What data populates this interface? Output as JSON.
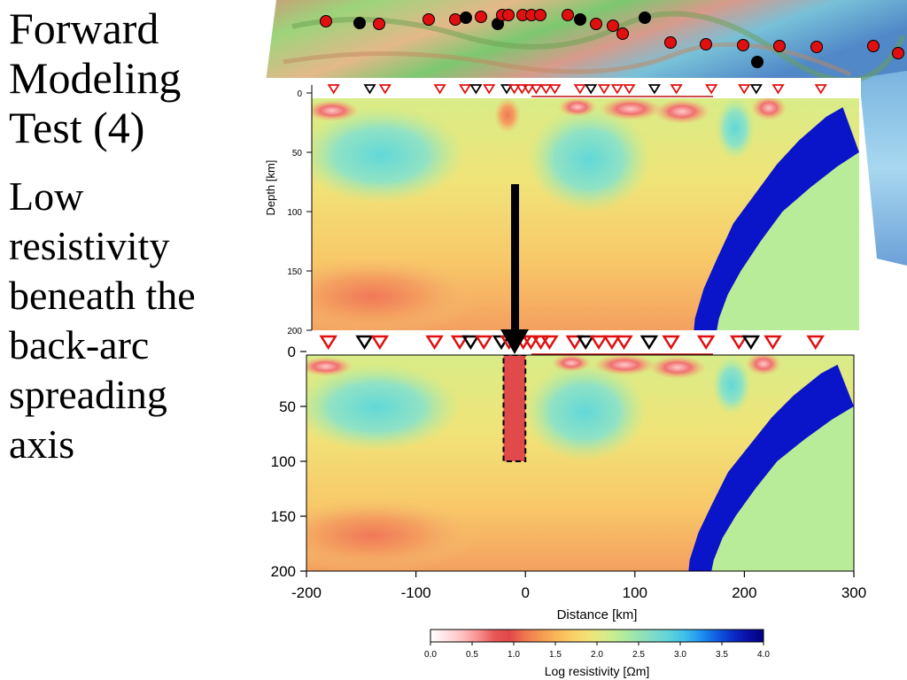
{
  "slide": {
    "title_lines": [
      "Forward",
      "Modeling",
      "Test (4)"
    ],
    "subtitle_lines": [
      "Low",
      "resistivity",
      "beneath the",
      "back-arc",
      "spreading",
      "axis"
    ]
  },
  "colors": {
    "slab": "#0a14c8",
    "background_mantle": "#b8ec98",
    "conductor": "#e04a4a",
    "station_red": "#e01010",
    "station_black": "#000000"
  },
  "chart_data": [
    {
      "type": "heatmap",
      "panel": "top-original-model",
      "x_range": [
        -200,
        300
      ],
      "ylim": [
        0,
        200
      ],
      "y_inverted": true,
      "ylabel": "Depth [km]",
      "yticks": [
        0,
        50,
        100,
        150,
        200
      ],
      "stations": [
        {
          "x": -180,
          "c": "red"
        },
        {
          "x": -147,
          "c": "black"
        },
        {
          "x": -133,
          "c": "red"
        },
        {
          "x": -83,
          "c": "red"
        },
        {
          "x": -60,
          "c": "red"
        },
        {
          "x": -50,
          "c": "black"
        },
        {
          "x": -38,
          "c": "red"
        },
        {
          "x": -22,
          "c": "black"
        },
        {
          "x": -15,
          "c": "red"
        },
        {
          "x": -8,
          "c": "red"
        },
        {
          "x": -2,
          "c": "red"
        },
        {
          "x": 5,
          "c": "red"
        },
        {
          "x": 14,
          "c": "red"
        },
        {
          "x": 22,
          "c": "red"
        },
        {
          "x": 45,
          "c": "red"
        },
        {
          "x": 55,
          "c": "black"
        },
        {
          "x": 67,
          "c": "red"
        },
        {
          "x": 79,
          "c": "red"
        },
        {
          "x": 90,
          "c": "red"
        },
        {
          "x": 113,
          "c": "black"
        },
        {
          "x": 133,
          "c": "red"
        },
        {
          "x": 165,
          "c": "red"
        },
        {
          "x": 195,
          "c": "red"
        },
        {
          "x": 206,
          "c": "black"
        },
        {
          "x": 226,
          "c": "red"
        },
        {
          "x": 265,
          "c": "red"
        }
      ]
    },
    {
      "type": "heatmap",
      "panel": "bottom-test-model",
      "x_range": [
        -200,
        300
      ],
      "xticks": [
        -200,
        -100,
        0,
        100,
        200,
        300
      ],
      "xlabel": "Distance [km]",
      "ylim": [
        0,
        200
      ],
      "y_inverted": true,
      "yticks": [
        0,
        50,
        100,
        150,
        200
      ],
      "added_conductor": {
        "x": [
          -20,
          0
        ],
        "depth": [
          0,
          100
        ]
      },
      "stations": [
        {
          "x": -180,
          "c": "red"
        },
        {
          "x": -147,
          "c": "black"
        },
        {
          "x": -133,
          "c": "red"
        },
        {
          "x": -83,
          "c": "red"
        },
        {
          "x": -60,
          "c": "red"
        },
        {
          "x": -50,
          "c": "black"
        },
        {
          "x": -38,
          "c": "red"
        },
        {
          "x": -22,
          "c": "black"
        },
        {
          "x": -15,
          "c": "red"
        },
        {
          "x": -8,
          "c": "red"
        },
        {
          "x": -2,
          "c": "red"
        },
        {
          "x": 5,
          "c": "red"
        },
        {
          "x": 14,
          "c": "red"
        },
        {
          "x": 22,
          "c": "red"
        },
        {
          "x": 45,
          "c": "red"
        },
        {
          "x": 55,
          "c": "black"
        },
        {
          "x": 67,
          "c": "red"
        },
        {
          "x": 79,
          "c": "red"
        },
        {
          "x": 90,
          "c": "red"
        },
        {
          "x": 113,
          "c": "black"
        },
        {
          "x": 133,
          "c": "red"
        },
        {
          "x": 165,
          "c": "red"
        },
        {
          "x": 195,
          "c": "red"
        },
        {
          "x": 206,
          "c": "black"
        },
        {
          "x": 226,
          "c": "red"
        },
        {
          "x": 265,
          "c": "red"
        }
      ]
    }
  ],
  "colorbar": {
    "label": "Log resistivity [Ωm]",
    "ticks": [
      "0.0",
      "0.5",
      "1.0",
      "1.5",
      "2.0",
      "2.5",
      "3.0",
      "3.5",
      "4.0"
    ],
    "range": [
      0,
      4
    ],
    "colors": [
      "#ffffff",
      "#ffe2e2",
      "#ffc0c0",
      "#f89090",
      "#e85858",
      "#e04848",
      "#f07850",
      "#f49a50",
      "#f8b85a",
      "#f8d068",
      "#f0e478",
      "#d8ec88",
      "#b8ec98",
      "#98e4b0",
      "#80dcc8",
      "#60d4d8",
      "#40c0ea",
      "#2094f0",
      "#1060e0",
      "#0a30c8",
      "#0a10a8",
      "#000080"
    ]
  }
}
